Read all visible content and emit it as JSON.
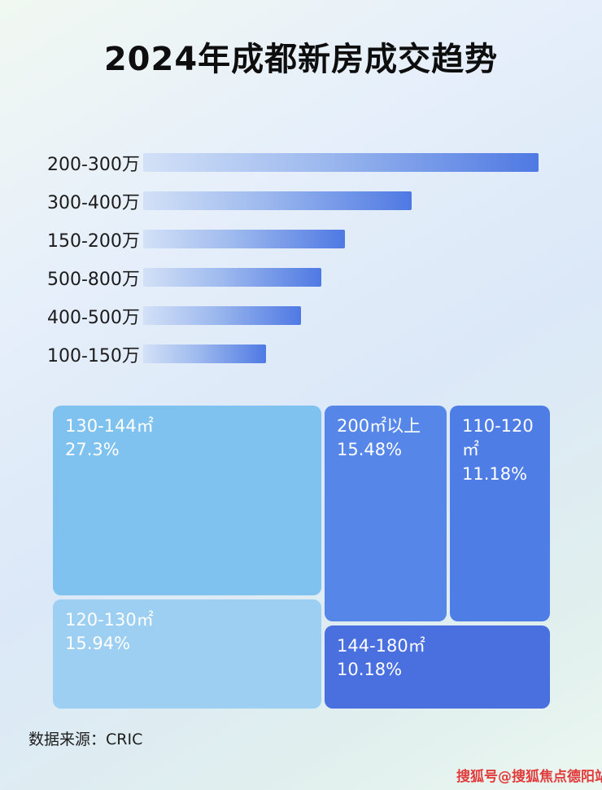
{
  "page": {
    "title": "2024年成都新房成交趋势",
    "source_label": "数据来源：CRIC",
    "watermark": "搜狐号@搜狐焦点德阳站",
    "colors": {
      "bar_gradient_start": "#d3e1f7",
      "bar_gradient_end": "#4f79e3",
      "watermark_red": "#e23b3b"
    }
  },
  "chart_data": [
    {
      "type": "bar",
      "orientation": "horizontal",
      "title": "2024年成都新房成交趋势",
      "categories": [
        "200-300万",
        "300-400万",
        "150-200万",
        "500-800万",
        "400-500万",
        "100-150万"
      ],
      "values": [
        100,
        68,
        51,
        45,
        40,
        31
      ],
      "value_note": "relative bar length as % of longest bar; no numeric axis shown in image",
      "xlabel": "",
      "ylabel": "",
      "grid": false,
      "legend": false
    },
    {
      "type": "treemap",
      "items": [
        {
          "label": "130-144㎡",
          "pct": "27.3%",
          "value": 27.3,
          "color": "#7fc2ef"
        },
        {
          "label": "200㎡以上",
          "pct": "15.48%",
          "value": 15.48,
          "color": "#5586e8"
        },
        {
          "label": "110-120㎡",
          "pct": "11.18%",
          "value": 11.18,
          "color": "#4f7de6"
        },
        {
          "label": "120-130㎡",
          "pct": "15.94%",
          "value": 15.94,
          "color": "#9ccff2"
        },
        {
          "label": "144-180㎡",
          "pct": "10.18%",
          "value": 10.18,
          "color": "#4a70e0"
        }
      ],
      "legend": false
    }
  ]
}
